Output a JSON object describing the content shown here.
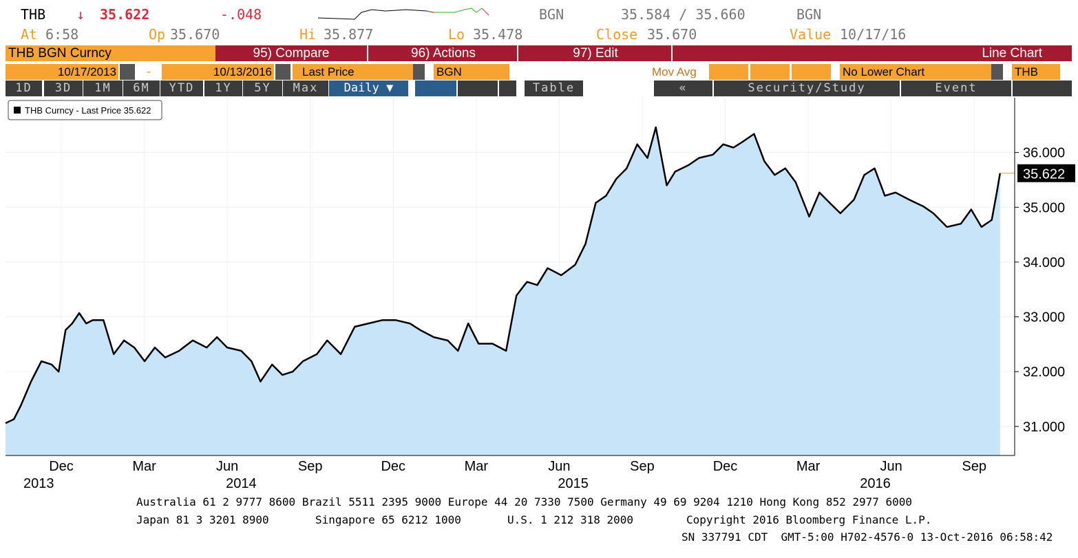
{
  "header": {
    "ticker": "THB",
    "direction": "↓",
    "last": "35.622",
    "change": "-.048",
    "bid_source": "BGN",
    "bid_ask": "35.584 / 35.660",
    "ask_source": "BGN",
    "at": {
      "label": "At",
      "value": "6:58"
    },
    "open": {
      "label": "Op",
      "value": "35.670"
    },
    "high": {
      "label": "Hi",
      "value": "35.877"
    },
    "low": {
      "label": "Lo",
      "value": "35.478"
    },
    "close": {
      "label": "Close",
      "value": "35.670"
    },
    "value_date": {
      "label": "Value",
      "value": "10/17/16"
    }
  },
  "toolbar": {
    "security": "THB BGN Curncy",
    "compare": "95) Compare",
    "actions": "96) Actions",
    "edit": "97) Edit",
    "chart_type": "Line Chart",
    "start_date": "10/17/2013",
    "date_sep": "-",
    "end_date": "10/13/2016",
    "field": "Last Price",
    "source": "BGN",
    "mov_avg": "Mov Avg",
    "lower_chart": "No Lower Chart",
    "currency": "THB",
    "periods": [
      "1D",
      "3D",
      "1M",
      "6M",
      "YTD",
      "1Y",
      "5Y",
      "Max"
    ],
    "frequency": "Daily ▼",
    "table": "Table",
    "back": "«",
    "security_study": "Security/Study",
    "event": "Event"
  },
  "chart_data": {
    "type": "line",
    "fill": "#c8e4f8",
    "series": [
      {
        "name": "THB Curncy - Last Price 35.622",
        "color": "#000000",
        "x": [
          2013.79,
          2013.815,
          2013.836,
          2013.867,
          2013.898,
          2013.929,
          2013.95,
          2013.971,
          2013.991,
          2014.012,
          2014.033,
          2014.053,
          2014.085,
          2014.116,
          2014.147,
          2014.178,
          2014.209,
          2014.24,
          2014.271,
          2014.313,
          2014.354,
          2014.396,
          2014.427,
          2014.458,
          2014.5,
          2014.531,
          2014.558,
          2014.593,
          2014.624,
          2014.655,
          2014.686,
          2014.728,
          2014.759,
          2014.8,
          2014.842,
          2014.883,
          2014.925,
          2014.966,
          2015.008,
          2015.039,
          2015.08,
          2015.122,
          2015.153,
          2015.184,
          2015.215,
          2015.257,
          2015.298,
          2015.329,
          2015.361,
          2015.392,
          2015.423,
          2015.464,
          2015.506,
          2015.537,
          2015.568,
          2015.599,
          2015.63,
          2015.661,
          2015.693,
          2015.724,
          2015.749,
          2015.782,
          2015.807,
          2015.848,
          2015.879,
          2015.921,
          2015.952,
          2015.983,
          2016.014,
          2016.045,
          2016.076,
          2016.107,
          2016.139,
          2016.17,
          2016.211,
          2016.242,
          2016.273,
          2016.305,
          2016.346,
          2016.377,
          2016.408,
          2016.439,
          2016.471,
          2016.512,
          2016.554,
          2016.585,
          2016.626,
          2016.668,
          2016.699,
          2016.73,
          2016.761,
          2016.776,
          2016.786
        ],
        "values": [
          31.06,
          31.13,
          31.38,
          31.82,
          32.19,
          32.13,
          32.0,
          32.76,
          32.88,
          33.07,
          32.88,
          32.94,
          32.94,
          32.32,
          32.57,
          32.44,
          32.19,
          32.44,
          32.26,
          32.38,
          32.57,
          32.44,
          32.63,
          32.44,
          32.38,
          32.19,
          31.82,
          32.13,
          31.94,
          32.0,
          32.19,
          32.32,
          32.57,
          32.32,
          32.82,
          32.88,
          32.94,
          32.94,
          32.88,
          32.76,
          32.63,
          32.57,
          32.38,
          32.88,
          32.51,
          32.51,
          32.38,
          33.39,
          33.64,
          33.58,
          33.89,
          33.76,
          33.95,
          34.33,
          35.08,
          35.21,
          35.52,
          35.71,
          36.15,
          35.9,
          36.46,
          35.4,
          35.65,
          35.77,
          35.9,
          35.96,
          36.15,
          36.09,
          36.21,
          36.34,
          35.84,
          35.59,
          35.71,
          35.46,
          34.83,
          35.27,
          35.08,
          34.89,
          35.14,
          35.59,
          35.71,
          35.21,
          35.27,
          35.14,
          35.02,
          34.89,
          34.64,
          34.7,
          34.96,
          34.64,
          34.77,
          35.27,
          35.622
        ]
      }
    ],
    "xlim": [
      2013.79,
      2016.83
    ],
    "ylim": [
      30.47,
      37.0
    ],
    "yticks": [
      {
        "value": 31,
        "label": "31.000"
      },
      {
        "value": 32,
        "label": "32.000"
      },
      {
        "value": 33,
        "label": "33.000"
      },
      {
        "value": 34,
        "label": "34.000"
      },
      {
        "value": 35,
        "label": "35.000"
      },
      {
        "value": 36,
        "label": "36.000"
      }
    ],
    "xticks": [
      {
        "value": 2013.958,
        "label": "Dec"
      },
      {
        "value": 2014.208,
        "label": "Mar"
      },
      {
        "value": 2014.458,
        "label": "Jun"
      },
      {
        "value": 2014.708,
        "label": "Sep"
      },
      {
        "value": 2014.958,
        "label": "Dec"
      },
      {
        "value": 2015.208,
        "label": "Mar"
      },
      {
        "value": 2015.458,
        "label": "Jun"
      },
      {
        "value": 2015.708,
        "label": "Sep"
      },
      {
        "value": 2015.958,
        "label": "Dec"
      },
      {
        "value": 2016.208,
        "label": "Mar"
      },
      {
        "value": 2016.458,
        "label": "Jun"
      },
      {
        "value": 2016.708,
        "label": "Sep"
      }
    ],
    "year_ticks": [
      {
        "value": 2013.89,
        "label": "2013"
      },
      {
        "value": 2014.5,
        "label": "2014"
      },
      {
        "value": 2015.5,
        "label": "2015"
      },
      {
        "value": 2016.41,
        "label": "2016"
      }
    ],
    "grid": true
  },
  "footer": {
    "line1": "Australia 61 2 9777 8600 Brazil 5511 2395 9000 Europe 44 20 7330 7500 Germany 49 69 9204 1210 Hong Kong 852 2977 6000",
    "line2a": "Japan 81 3 3201 8900",
    "line2b": "Singapore 65 6212 1000",
    "line2c": "U.S. 1 212 318 2000",
    "line2d": "Copyright 2016 Bloomberg Finance L.P.",
    "line3": "SN 337791 CDT  GMT-5:00 H702-4576-0 13-Oct-2016 06:58:42"
  }
}
